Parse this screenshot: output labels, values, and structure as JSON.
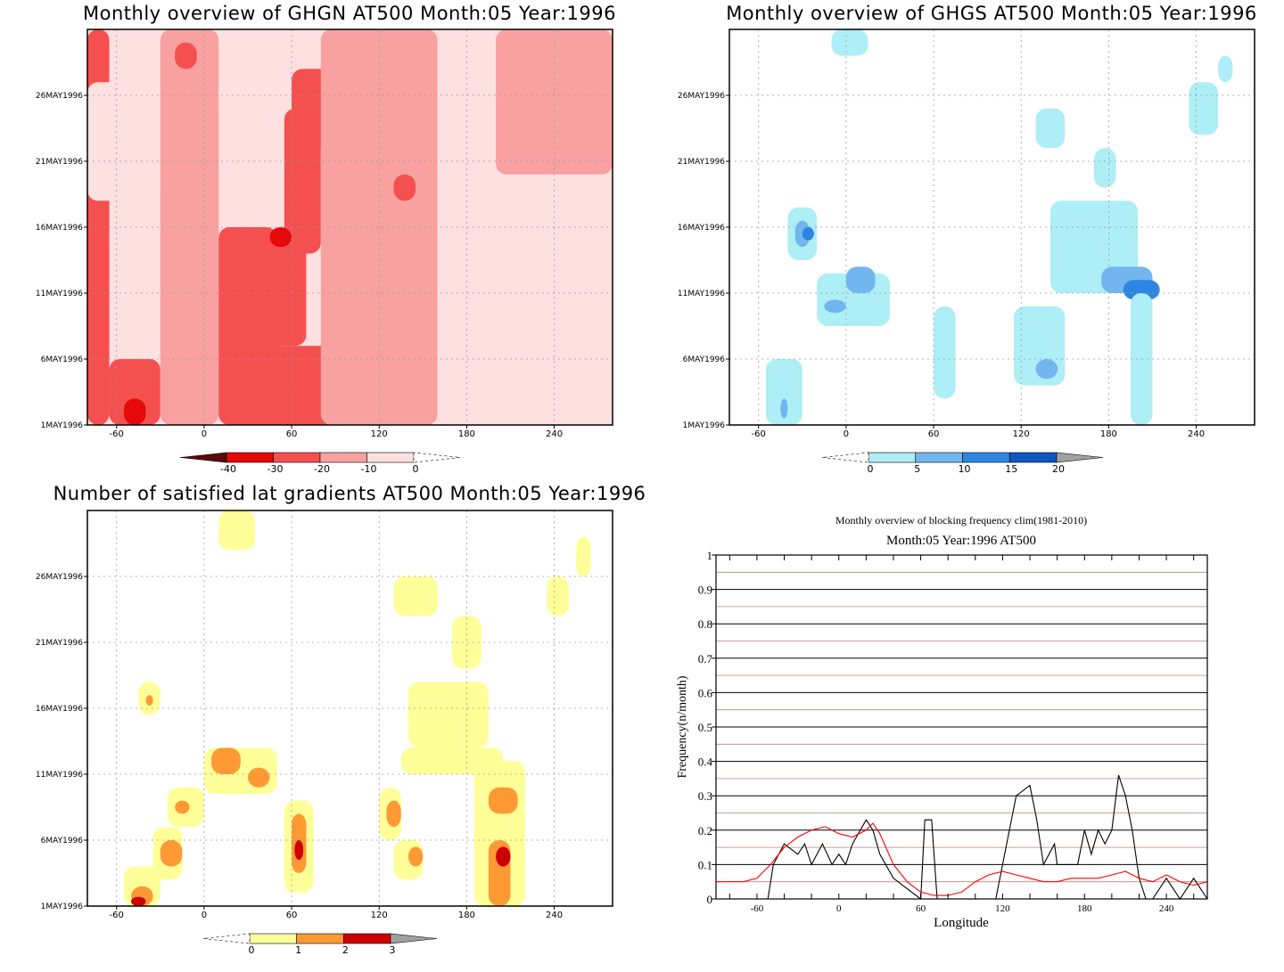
{
  "chart_data": [
    {
      "type": "heatmap",
      "title": "Monthly overview of GHGN AT500 Month:05 Year:1996",
      "x_ticks": [
        "-60",
        "0",
        "60",
        "120",
        "180",
        "240"
      ],
      "x_tick_values": [
        -60,
        0,
        60,
        120,
        180,
        240
      ],
      "xlim": [
        -80,
        280
      ],
      "y_ticks": [
        "1MAY1996",
        "6MAY1996",
        "11MAY1996",
        "16MAY1996",
        "21MAY1996",
        "26MAY1996"
      ],
      "y_tick_values": [
        1,
        6,
        11,
        16,
        21,
        26
      ],
      "ylim": [
        1,
        31
      ],
      "grid": true,
      "colorbar": {
        "labels": [
          "-40",
          "-30",
          "-20",
          "-10",
          "0"
        ],
        "colors": [
          "#5a0a0a",
          "#e40a0a",
          "#f55050",
          "#f9a0a0",
          "#fde0e0",
          "#ffffff"
        ]
      },
      "cells": [
        {
          "x0": -80,
          "x1": -65,
          "y0": 1,
          "y1": 31,
          "level": 2
        },
        {
          "x0": -65,
          "x1": -30,
          "y0": 1,
          "y1": 6,
          "level": 2
        },
        {
          "x0": -55,
          "x1": -40,
          "y0": 1,
          "y1": 3,
          "level": 1
        },
        {
          "x0": -30,
          "x1": 10,
          "y0": 1,
          "y1": 31,
          "level": 3
        },
        {
          "x0": -80,
          "x1": -30,
          "y0": 18,
          "y1": 27,
          "level": 4
        },
        {
          "x0": -60,
          "x1": -35,
          "y0": 7,
          "y1": 10,
          "level": 4
        },
        {
          "x0": 10,
          "x1": 50,
          "y0": 1,
          "y1": 16,
          "level": 2
        },
        {
          "x0": 30,
          "x1": 90,
          "y0": 1,
          "y1": 7,
          "level": 2
        },
        {
          "x0": 35,
          "x1": 70,
          "y0": 7,
          "y1": 15,
          "level": 2
        },
        {
          "x0": 55,
          "x1": 80,
          "y0": 14,
          "y1": 25,
          "level": 2
        },
        {
          "x0": 60,
          "x1": 90,
          "y0": 22,
          "y1": 28,
          "level": 2
        },
        {
          "x0": 45,
          "x1": 60,
          "y0": 14.5,
          "y1": 16,
          "level": 1
        },
        {
          "x0": 80,
          "x1": 160,
          "y0": 1,
          "y1": 31,
          "level": 3
        },
        {
          "x0": 160,
          "x1": 200,
          "y0": 1,
          "y1": 31,
          "level": 4
        },
        {
          "x0": 200,
          "x1": 280,
          "y0": 1,
          "y1": 20,
          "level": 4
        },
        {
          "x0": 200,
          "x1": 280,
          "y0": 20,
          "y1": 31,
          "level": 3
        },
        {
          "x0": -20,
          "x1": -5,
          "y0": 28,
          "y1": 30,
          "level": 2
        },
        {
          "x0": 130,
          "x1": 145,
          "y0": 18,
          "y1": 20,
          "level": 2
        }
      ]
    },
    {
      "type": "heatmap",
      "title": "Monthly overview of GHGS AT500 Month:05 Year:1996",
      "x_ticks": [
        "-60",
        "0",
        "60",
        "120",
        "180",
        "240"
      ],
      "x_tick_values": [
        -60,
        0,
        60,
        120,
        180,
        240
      ],
      "xlim": [
        -80,
        280
      ],
      "y_ticks": [
        "1MAY1996",
        "6MAY1996",
        "11MAY1996",
        "16MAY1996",
        "21MAY1996",
        "26MAY1996"
      ],
      "y_tick_values": [
        1,
        6,
        11,
        16,
        21,
        26
      ],
      "ylim": [
        1,
        31
      ],
      "grid": true,
      "colorbar": {
        "labels": [
          "0",
          "5",
          "10",
          "15",
          "20"
        ],
        "colors": [
          "#ffffff",
          "#aeeef6",
          "#72b6f0",
          "#2d86e2",
          "#0c56c2",
          "#a0a0a0"
        ]
      },
      "cells": [
        {
          "x0": -40,
          "x1": -20,
          "y0": 13.5,
          "y1": 17.5,
          "level": 1
        },
        {
          "x0": -35,
          "x1": -25,
          "y0": 14.5,
          "y1": 16.5,
          "level": 2
        },
        {
          "x0": -30,
          "x1": -22,
          "y0": 15,
          "y1": 16,
          "level": 3
        },
        {
          "x0": -20,
          "x1": 30,
          "y0": 8.5,
          "y1": 12.5,
          "level": 1
        },
        {
          "x0": 0,
          "x1": 20,
          "y0": 11,
          "y1": 13,
          "level": 2
        },
        {
          "x0": -55,
          "x1": -30,
          "y0": 1,
          "y1": 6,
          "level": 1
        },
        {
          "x0": -45,
          "x1": -40,
          "y0": 1.5,
          "y1": 3,
          "level": 2
        },
        {
          "x0": -15,
          "x1": 0,
          "y0": 9.5,
          "y1": 10.5,
          "level": 2
        },
        {
          "x0": -10,
          "x1": 15,
          "y0": 29,
          "y1": 31,
          "level": 1
        },
        {
          "x0": 60,
          "x1": 75,
          "y0": 3,
          "y1": 10,
          "level": 1
        },
        {
          "x0": 115,
          "x1": 150,
          "y0": 4,
          "y1": 10,
          "level": 1
        },
        {
          "x0": 130,
          "x1": 145,
          "y0": 4.5,
          "y1": 6,
          "level": 2
        },
        {
          "x0": 140,
          "x1": 200,
          "y0": 11,
          "y1": 18,
          "level": 1
        },
        {
          "x0": 175,
          "x1": 210,
          "y0": 11,
          "y1": 13,
          "level": 2
        },
        {
          "x0": 190,
          "x1": 215,
          "y0": 10.5,
          "y1": 12,
          "level": 3
        },
        {
          "x0": 195,
          "x1": 210,
          "y0": 1,
          "y1": 11,
          "level": 1
        },
        {
          "x0": 170,
          "x1": 185,
          "y0": 19,
          "y1": 22,
          "level": 1
        },
        {
          "x0": 130,
          "x1": 150,
          "y0": 22,
          "y1": 25,
          "level": 1
        },
        {
          "x0": 235,
          "x1": 255,
          "y0": 23,
          "y1": 27,
          "level": 1
        },
        {
          "x0": 255,
          "x1": 265,
          "y0": 27,
          "y1": 29,
          "level": 1
        }
      ]
    },
    {
      "type": "heatmap",
      "title": "Number of satisfied lat gradients AT500 Month:05 Year:1996",
      "x_ticks": [
        "-60",
        "0",
        "60",
        "120",
        "180",
        "240"
      ],
      "x_tick_values": [
        -60,
        0,
        60,
        120,
        180,
        240
      ],
      "xlim": [
        -80,
        280
      ],
      "y_ticks": [
        "1MAY1996",
        "6MAY1996",
        "11MAY1996",
        "16MAY1996",
        "21MAY1996",
        "26MAY1996"
      ],
      "y_tick_values": [
        1,
        6,
        11,
        16,
        21,
        26
      ],
      "ylim": [
        1,
        31
      ],
      "grid": true,
      "colorbar": {
        "labels": [
          "0",
          "1",
          "2",
          "3"
        ],
        "colors": [
          "#ffffff",
          "#ffff99",
          "#ff9933",
          "#cc0000",
          "#a0a0a0"
        ]
      },
      "cells": [
        {
          "x0": -55,
          "x1": -30,
          "y0": 1,
          "y1": 4,
          "level": 1
        },
        {
          "x0": -50,
          "x1": -35,
          "y0": 1,
          "y1": 2.5,
          "level": 2
        },
        {
          "x0": -50,
          "x1": -40,
          "y0": 1,
          "y1": 1.7,
          "level": 3
        },
        {
          "x0": -35,
          "x1": -15,
          "y0": 3,
          "y1": 7,
          "level": 1
        },
        {
          "x0": -30,
          "x1": -15,
          "y0": 4,
          "y1": 6,
          "level": 2
        },
        {
          "x0": -25,
          "x1": 0,
          "y0": 7,
          "y1": 10,
          "level": 1
        },
        {
          "x0": -20,
          "x1": -10,
          "y0": 8,
          "y1": 9,
          "level": 2
        },
        {
          "x0": -45,
          "x1": -30,
          "y0": 15.5,
          "y1": 18,
          "level": 1
        },
        {
          "x0": -40,
          "x1": -35,
          "y0": 16.2,
          "y1": 17,
          "level": 2
        },
        {
          "x0": 0,
          "x1": 50,
          "y0": 9.5,
          "y1": 13,
          "level": 1
        },
        {
          "x0": 5,
          "x1": 25,
          "y0": 11,
          "y1": 13,
          "level": 2
        },
        {
          "x0": 30,
          "x1": 45,
          "y0": 10,
          "y1": 11.5,
          "level": 2
        },
        {
          "x0": 10,
          "x1": 35,
          "y0": 28,
          "y1": 31,
          "level": 1
        },
        {
          "x0": 55,
          "x1": 75,
          "y0": 2,
          "y1": 9,
          "level": 1
        },
        {
          "x0": 60,
          "x1": 70,
          "y0": 3.5,
          "y1": 8,
          "level": 2
        },
        {
          "x0": 62,
          "x1": 68,
          "y0": 4.5,
          "y1": 6,
          "level": 3
        },
        {
          "x0": 120,
          "x1": 135,
          "y0": 6,
          "y1": 10,
          "level": 1
        },
        {
          "x0": 125,
          "x1": 135,
          "y0": 7,
          "y1": 9,
          "level": 2
        },
        {
          "x0": 130,
          "x1": 150,
          "y0": 3,
          "y1": 6,
          "level": 1
        },
        {
          "x0": 140,
          "x1": 150,
          "y0": 4,
          "y1": 5.5,
          "level": 2
        },
        {
          "x0": 135,
          "x1": 205,
          "y0": 11,
          "y1": 13,
          "level": 1
        },
        {
          "x0": 140,
          "x1": 195,
          "y0": 13,
          "y1": 18,
          "level": 1
        },
        {
          "x0": 185,
          "x1": 220,
          "y0": 1,
          "y1": 12,
          "level": 1
        },
        {
          "x0": 195,
          "x1": 215,
          "y0": 8,
          "y1": 10,
          "level": 2
        },
        {
          "x0": 195,
          "x1": 210,
          "y0": 1,
          "y1": 6,
          "level": 2
        },
        {
          "x0": 200,
          "x1": 210,
          "y0": 4,
          "y1": 5.5,
          "level": 3
        },
        {
          "x0": 130,
          "x1": 160,
          "y0": 23,
          "y1": 26,
          "level": 1
        },
        {
          "x0": 170,
          "x1": 190,
          "y0": 19,
          "y1": 23,
          "level": 1
        },
        {
          "x0": 235,
          "x1": 250,
          "y0": 23,
          "y1": 26,
          "level": 1
        },
        {
          "x0": 255,
          "x1": 265,
          "y0": 26,
          "y1": 29,
          "level": 1
        }
      ]
    },
    {
      "type": "line",
      "title": "Monthly overview of blocking frequency clim(1981-2010)",
      "subtitle": "Month:05 Year:1996  AT500",
      "xlabel": "Longitude",
      "ylabel": "Frequency(n/month)",
      "xlim": [
        -90,
        270
      ],
      "ylim": [
        0,
        1
      ],
      "x_ticks": [
        "-60",
        "0",
        "60",
        "120",
        "180",
        "240"
      ],
      "x_tick_values": [
        -60,
        0,
        60,
        120,
        180,
        240
      ],
      "y_ticks": [
        "0",
        "0.1",
        "0.2",
        "0.3",
        "0.4",
        "0.5",
        "0.6",
        "0.7",
        "0.8",
        "0.9",
        "1"
      ],
      "y_tick_values": [
        0,
        0.1,
        0.2,
        0.3,
        0.4,
        0.5,
        0.6,
        0.7,
        0.8,
        0.9,
        1
      ],
      "grid": true,
      "series": [
        {
          "color": "#000000",
          "x": [
            -90,
            -52,
            -48,
            -40,
            -30,
            -25,
            -20,
            -12,
            -5,
            0,
            5,
            10,
            20,
            25,
            30,
            40,
            50,
            60,
            63,
            68,
            72,
            80,
            90,
            100,
            115,
            120,
            130,
            140,
            145,
            150,
            158,
            160,
            165,
            170,
            175,
            180,
            185,
            190,
            195,
            200,
            205,
            210,
            215,
            220,
            225,
            230,
            240,
            245,
            250,
            260,
            270
          ],
          "y": [
            0,
            0,
            0.1,
            0.16,
            0.13,
            0.16,
            0.1,
            0.16,
            0.1,
            0.13,
            0.1,
            0.16,
            0.23,
            0.2,
            0.13,
            0.06,
            0.03,
            0,
            0.23,
            0.23,
            0,
            0,
            0,
            0,
            0,
            0.1,
            0.3,
            0.33,
            0.23,
            0.1,
            0.16,
            0.1,
            0.1,
            0.1,
            0.1,
            0.2,
            0.13,
            0.2,
            0.16,
            0.2,
            0.36,
            0.3,
            0.2,
            0.06,
            0,
            0,
            0.06,
            0.03,
            0,
            0.06,
            0
          ]
        },
        {
          "color": "#ff0000",
          "x": [
            -90,
            -80,
            -70,
            -60,
            -50,
            -40,
            -30,
            -20,
            -10,
            -5,
            0,
            10,
            20,
            25,
            30,
            40,
            50,
            60,
            70,
            80,
            90,
            100,
            110,
            120,
            130,
            140,
            150,
            160,
            170,
            180,
            190,
            200,
            210,
            220,
            230,
            240,
            250,
            260,
            270
          ],
          "y": [
            0.05,
            0.05,
            0.05,
            0.06,
            0.1,
            0.15,
            0.18,
            0.2,
            0.21,
            0.2,
            0.19,
            0.18,
            0.2,
            0.22,
            0.19,
            0.1,
            0.05,
            0.02,
            0.01,
            0.01,
            0.02,
            0.05,
            0.07,
            0.08,
            0.07,
            0.06,
            0.05,
            0.05,
            0.06,
            0.06,
            0.06,
            0.07,
            0.08,
            0.06,
            0.05,
            0.07,
            0.05,
            0.04,
            0.05
          ]
        }
      ]
    }
  ]
}
